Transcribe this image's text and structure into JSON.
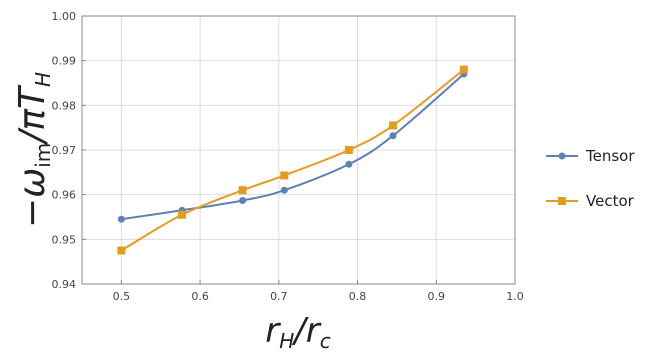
{
  "chart_data": {
    "type": "line",
    "xlabel_main": "r",
    "xlabel_sub_main": "H",
    "xlabel_denom": "r",
    "xlabel_sub_denom": "c",
    "ylabel_omega": "−ω",
    "ylabel_omega_sub": "im",
    "ylabel_rest": "/πT",
    "ylabel_rest_sub": "H",
    "xlim": [
      0.45,
      1.0
    ],
    "ylim": [
      0.94,
      1.0
    ],
    "x_ticks": [
      "0.5",
      "0.6",
      "0.7",
      "0.8",
      "0.9",
      "1.0"
    ],
    "y_ticks": [
      "0.94",
      "0.95",
      "0.96",
      "0.97",
      "0.98",
      "0.99",
      "1.00"
    ],
    "grid": true,
    "legend_position": "right",
    "series": [
      {
        "name": "Tensor",
        "color": "#5e81b5",
        "marker": "circle",
        "x": [
          0.5,
          0.577,
          0.654,
          0.707,
          0.789,
          0.845,
          0.935
        ],
        "y": [
          0.9545,
          0.9565,
          0.9587,
          0.961,
          0.9668,
          0.9732,
          0.987
        ]
      },
      {
        "name": "Vector",
        "color": "#e19c24",
        "marker": "square",
        "x": [
          0.5,
          0.577,
          0.654,
          0.707,
          0.789,
          0.845,
          0.935
        ],
        "y": [
          0.9475,
          0.9555,
          0.961,
          0.9643,
          0.97,
          0.9755,
          0.988
        ]
      }
    ]
  }
}
